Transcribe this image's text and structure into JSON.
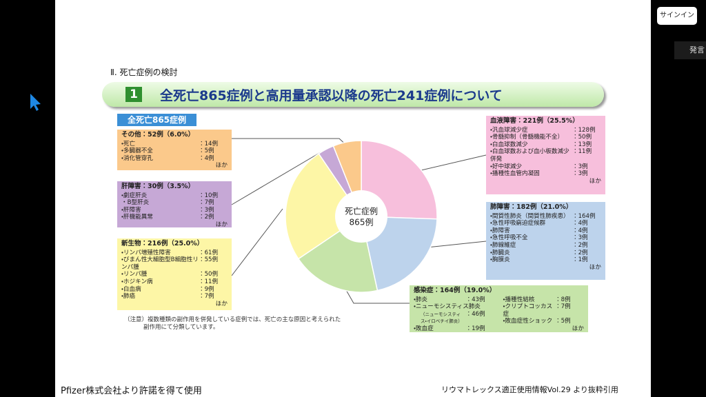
{
  "ui": {
    "sign_in": "サインイン",
    "speak": "発言"
  },
  "slide": {
    "section": "Ⅱ. 死亡症例の検討",
    "number": "1",
    "title": "全死亡865症例と高用量承認以降の死亡241症例について",
    "tag": "全死亡865症例",
    "note": [
      "（注意）複数種類の副作用を併発している症例では、死亡の主な原因と考えられた",
      "副作用にて分類しています。"
    ],
    "footer_left": "Pfizer株式会社より許諾を得て使用",
    "footer_right": "リウマトレックス適正使用情報Vol.29 より抜粋引用"
  },
  "chart": {
    "type": "donut",
    "center_label": [
      "死亡症例",
      "865例"
    ],
    "groups": [
      {
        "label": "血液障害：221例（25.5%）",
        "value": 221,
        "color": "#f7bfdc",
        "items": [
          {
            "name": "・汎血球減少症",
            "count": "：128例"
          },
          {
            "name": "・骨髄抑制（骨髄機能不全）",
            "count": "：50例"
          },
          {
            "name": "・白血球数減少",
            "count": "：13例"
          },
          {
            "name": "・白血球数および血小板数減少併発",
            "count": "：11例"
          },
          {
            "name": "・好中球減少",
            "count": "：3例"
          },
          {
            "name": "・播種性血管内凝固",
            "count": "：3例"
          }
        ],
        "other": "ほか"
      },
      {
        "label": "肺障害：182例（21.0%）",
        "value": 182,
        "color": "#bdd3ec",
        "items": [
          {
            "name": "・間質性肺炎（間質性肺疾患）",
            "count": "：164例"
          },
          {
            "name": "・急性呼吸窮迫症候群",
            "count": "：4例"
          },
          {
            "name": "・肺障害",
            "count": "：4例"
          },
          {
            "name": "・急性呼吸不全",
            "count": "：3例"
          },
          {
            "name": "・肺線維症",
            "count": "：2例"
          },
          {
            "name": "・肺臓炎",
            "count": "：2例"
          },
          {
            "name": "・胸膜炎",
            "count": "：1例"
          }
        ],
        "other": "ほか"
      },
      {
        "label": "感染症：164例（19.0%）",
        "value": 164,
        "color": "#c6e4a9",
        "items": [
          {
            "name": "・肺炎",
            "count": "：43例"
          },
          {
            "name": "・ニューモシスティス肺炎",
            "sub": "（ニューモシスティス・イロベチイ肺炎）",
            "count": "：46例"
          },
          {
            "name": "・敗血症",
            "count": "：19例"
          },
          {
            "name": "・播種性結核",
            "count": "：8例"
          },
          {
            "name": "・クリプトコッカス症",
            "count": "：7例"
          },
          {
            "name": "・敗血症性ショック",
            "count": "：5例"
          }
        ],
        "other": "ほか"
      },
      {
        "label": "新生物：216例（25.0%）",
        "value": 216,
        "color": "#fdf6a6",
        "items": [
          {
            "name": "・リンパ増殖性障害",
            "count": "：61例"
          },
          {
            "name": "・びまん性大細胞型B細胞性リンパ腫",
            "count": "：55例"
          },
          {
            "name": "・リンパ腫",
            "count": "：50例"
          },
          {
            "name": "・ホジキン病",
            "count": "：11例"
          },
          {
            "name": "・白血病",
            "count": "：9例"
          },
          {
            "name": "・肺癌",
            "count": "：7例"
          }
        ],
        "other": "ほか"
      },
      {
        "label": "肝障害：30例（3.5%）",
        "value": 30,
        "color": "#c6a8d6",
        "items": [
          {
            "name": "・劇症肝炎",
            "count": "：10例"
          },
          {
            "name": "・B型肝炎",
            "count": "：7例"
          },
          {
            "name": "・肝障害",
            "count": "：3例"
          },
          {
            "name": "・肝機能異常",
            "count": "：2例"
          }
        ],
        "other": "ほか"
      },
      {
        "label": "その他：52例（6.0%）",
        "value": 52,
        "color": "#fbc98b",
        "items": [
          {
            "name": "・死亡",
            "count": "：14例"
          },
          {
            "name": "・多臓器不全",
            "count": "：5例"
          },
          {
            "name": "・消化管穿孔",
            "count": "：4例"
          }
        ],
        "other": "ほか"
      }
    ]
  }
}
